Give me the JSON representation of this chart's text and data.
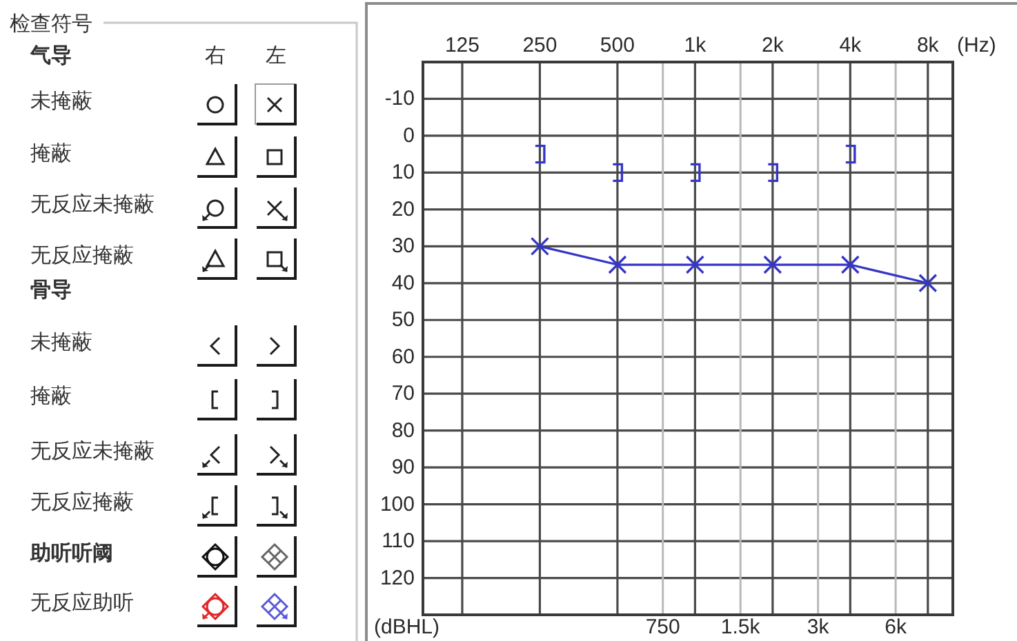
{
  "chart_data": [
    {
      "type": "other",
      "title": "检查符号",
      "annotations": [
        "气导",
        "右",
        "左",
        "未掩蔽",
        "掩蔽",
        "无反应未掩蔽",
        "无反应掩蔽",
        "骨导",
        "未掩蔽",
        "掩蔽",
        "无反应未掩蔽",
        "无反应掩蔽",
        "助听听阈",
        "无反应助听"
      ]
    },
    {
      "type": "line",
      "xlabel": "(Hz)",
      "ylabel": "(dBHL)",
      "log": "x",
      "grid": true,
      "xlim": [
        88,
        10000
      ],
      "xticks": [
        125,
        250,
        500,
        {
          "value": 1000,
          "label": "1k"
        },
        {
          "value": 2000,
          "label": "2k"
        },
        {
          "value": 4000,
          "label": "4k"
        },
        {
          "value": 8000,
          "label": "8k"
        }
      ],
      "ylim": [
        130,
        -20
      ],
      "yticks": [
        -10,
        0,
        10,
        20,
        30,
        40,
        50,
        60,
        70,
        80,
        90,
        100,
        110,
        120
      ],
      "ref_lines": [
        {
          "axis": "x",
          "value": 750,
          "label": "750",
          "color": "#b9b9b9"
        },
        {
          "axis": "x",
          "value": 1500,
          "label": "1.5k",
          "color": "#b9b9b9"
        },
        {
          "axis": "x",
          "value": 3000,
          "label": "3k",
          "color": "#b9b9b9"
        },
        {
          "axis": "x",
          "value": 6000,
          "label": "6k",
          "color": "#b9b9b9"
        }
      ],
      "series": [
        {
          "type": "line",
          "color": "#3535c8",
          "marker": "cross",
          "x": [
            250,
            500,
            1000,
            2000,
            4000,
            8000
          ],
          "values": [
            30,
            35,
            35,
            35,
            35,
            40
          ]
        },
        {
          "type": "scatter",
          "color": "#3535c8",
          "x": [
            250,
            500,
            1000,
            2000,
            4000
          ],
          "values": [
            5,
            10,
            10,
            10,
            5
          ]
        }
      ]
    }
  ]
}
